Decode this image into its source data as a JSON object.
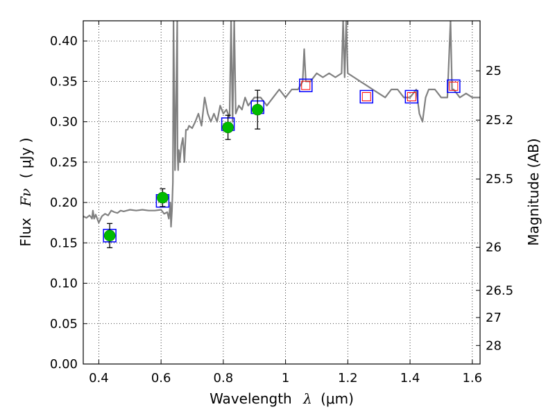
{
  "chart_data": {
    "type": "scatter",
    "xlabel_text": "Wavelength",
    "xlabel_symbol": "λ",
    "xlabel_unit": "(μm)",
    "ylabel_text": "Flux",
    "ylabel_symbol": "Fν",
    "ylabel_unit": "( μJy )",
    "y2label": "Magnitude (AB)",
    "xlim": [
      0.35,
      1.625
    ],
    "ylim": [
      0.0,
      0.425
    ],
    "grid": true,
    "x_ticks": [
      {
        "value": 0.4,
        "label": "0.4"
      },
      {
        "value": 0.6,
        "label": "0.6"
      },
      {
        "value": 0.8,
        "label": "0.8"
      },
      {
        "value": 1.0,
        "label": "1"
      },
      {
        "value": 1.2,
        "label": "1.2"
      },
      {
        "value": 1.4,
        "label": "1.4"
      },
      {
        "value": 1.6,
        "label": "1.6"
      }
    ],
    "y_ticks": [
      {
        "value": 0.0,
        "label": "0.00"
      },
      {
        "value": 0.05,
        "label": "0.05"
      },
      {
        "value": 0.1,
        "label": "0.10"
      },
      {
        "value": 0.15,
        "label": "0.15"
      },
      {
        "value": 0.2,
        "label": "0.20"
      },
      {
        "value": 0.25,
        "label": "0.25"
      },
      {
        "value": 0.3,
        "label": "0.30"
      },
      {
        "value": 0.35,
        "label": "0.35"
      },
      {
        "value": 0.4,
        "label": "0.40"
      }
    ],
    "y2_ticks": [
      {
        "mag": 25,
        "label": "25"
      },
      {
        "mag": 25.2,
        "label": "25.2"
      },
      {
        "mag": 25.5,
        "label": "25.5"
      },
      {
        "mag": 26,
        "label": "26"
      },
      {
        "mag": 26.5,
        "label": "26.5"
      },
      {
        "mag": 27,
        "label": "27"
      },
      {
        "mag": 28,
        "label": "28"
      }
    ],
    "series": [
      {
        "kind": "spectrum",
        "color": "#808080",
        "x": [
          0.35,
          0.36,
          0.37,
          0.375,
          0.378,
          0.381,
          0.385,
          0.39,
          0.4,
          0.41,
          0.42,
          0.43,
          0.44,
          0.45,
          0.46,
          0.47,
          0.48,
          0.49,
          0.5,
          0.52,
          0.54,
          0.56,
          0.58,
          0.6,
          0.61,
          0.62,
          0.625,
          0.63,
          0.632,
          0.635,
          0.638,
          0.64,
          0.645,
          0.652,
          0.653,
          0.655,
          0.657,
          0.66,
          0.665,
          0.67,
          0.675,
          0.68,
          0.685,
          0.69,
          0.7,
          0.71,
          0.72,
          0.73,
          0.74,
          0.75,
          0.76,
          0.77,
          0.78,
          0.79,
          0.8,
          0.81,
          0.82,
          0.825,
          0.83,
          0.835,
          0.84,
          0.85,
          0.86,
          0.87,
          0.88,
          0.9,
          0.92,
          0.94,
          0.96,
          0.98,
          1.0,
          1.02,
          1.04,
          1.055,
          1.06,
          1.065,
          1.08,
          1.1,
          1.12,
          1.14,
          1.16,
          1.18,
          1.185,
          1.19,
          1.195,
          1.2,
          1.22,
          1.24,
          1.26,
          1.28,
          1.3,
          1.32,
          1.34,
          1.36,
          1.38,
          1.4,
          1.42,
          1.43,
          1.44,
          1.45,
          1.46,
          1.48,
          1.5,
          1.52,
          1.53,
          1.535,
          1.54,
          1.56,
          1.58,
          1.6,
          1.625
        ],
        "y": [
          0.183,
          0.181,
          0.184,
          0.182,
          0.18,
          0.19,
          0.18,
          0.185,
          0.175,
          0.183,
          0.186,
          0.184,
          0.19,
          0.188,
          0.187,
          0.19,
          0.189,
          0.19,
          0.191,
          0.19,
          0.191,
          0.19,
          0.19,
          0.191,
          0.186,
          0.188,
          0.18,
          0.2,
          0.17,
          0.19,
          0.225,
          0.425,
          0.24,
          0.425,
          0.26,
          0.24,
          0.265,
          0.25,
          0.27,
          0.28,
          0.25,
          0.29,
          0.29,
          0.295,
          0.292,
          0.3,
          0.31,
          0.295,
          0.33,
          0.31,
          0.3,
          0.31,
          0.3,
          0.32,
          0.31,
          0.315,
          0.305,
          0.425,
          0.3,
          0.425,
          0.31,
          0.32,
          0.315,
          0.33,
          0.32,
          0.33,
          0.33,
          0.32,
          0.33,
          0.34,
          0.33,
          0.34,
          0.34,
          0.35,
          0.39,
          0.35,
          0.35,
          0.36,
          0.355,
          0.36,
          0.355,
          0.36,
          0.425,
          0.355,
          0.425,
          0.36,
          0.355,
          0.35,
          0.345,
          0.34,
          0.335,
          0.33,
          0.34,
          0.34,
          0.33,
          0.33,
          0.34,
          0.31,
          0.3,
          0.33,
          0.34,
          0.34,
          0.33,
          0.33,
          0.425,
          0.34,
          0.34,
          0.33,
          0.335,
          0.33,
          0.33
        ]
      },
      {
        "kind": "open-squares-blue",
        "color": "#0000ff",
        "x": [
          0.435,
          0.605,
          0.815,
          0.91,
          1.065,
          1.26,
          1.405,
          1.54
        ],
        "y": [
          0.159,
          0.202,
          0.297,
          0.318,
          0.345,
          0.331,
          0.331,
          0.344
        ]
      },
      {
        "kind": "small-squares-red",
        "color": "#ff0000",
        "x": [
          1.065,
          1.26,
          1.405,
          1.54
        ],
        "y": [
          0.345,
          0.331,
          0.331,
          0.344
        ]
      },
      {
        "kind": "filled-circles-green",
        "color": "#00bb00",
        "x": [
          0.435,
          0.605,
          0.815,
          0.91
        ],
        "y": [
          0.159,
          0.206,
          0.293,
          0.315
        ],
        "err": [
          0.015,
          0.011,
          0.015,
          0.024
        ]
      }
    ]
  }
}
